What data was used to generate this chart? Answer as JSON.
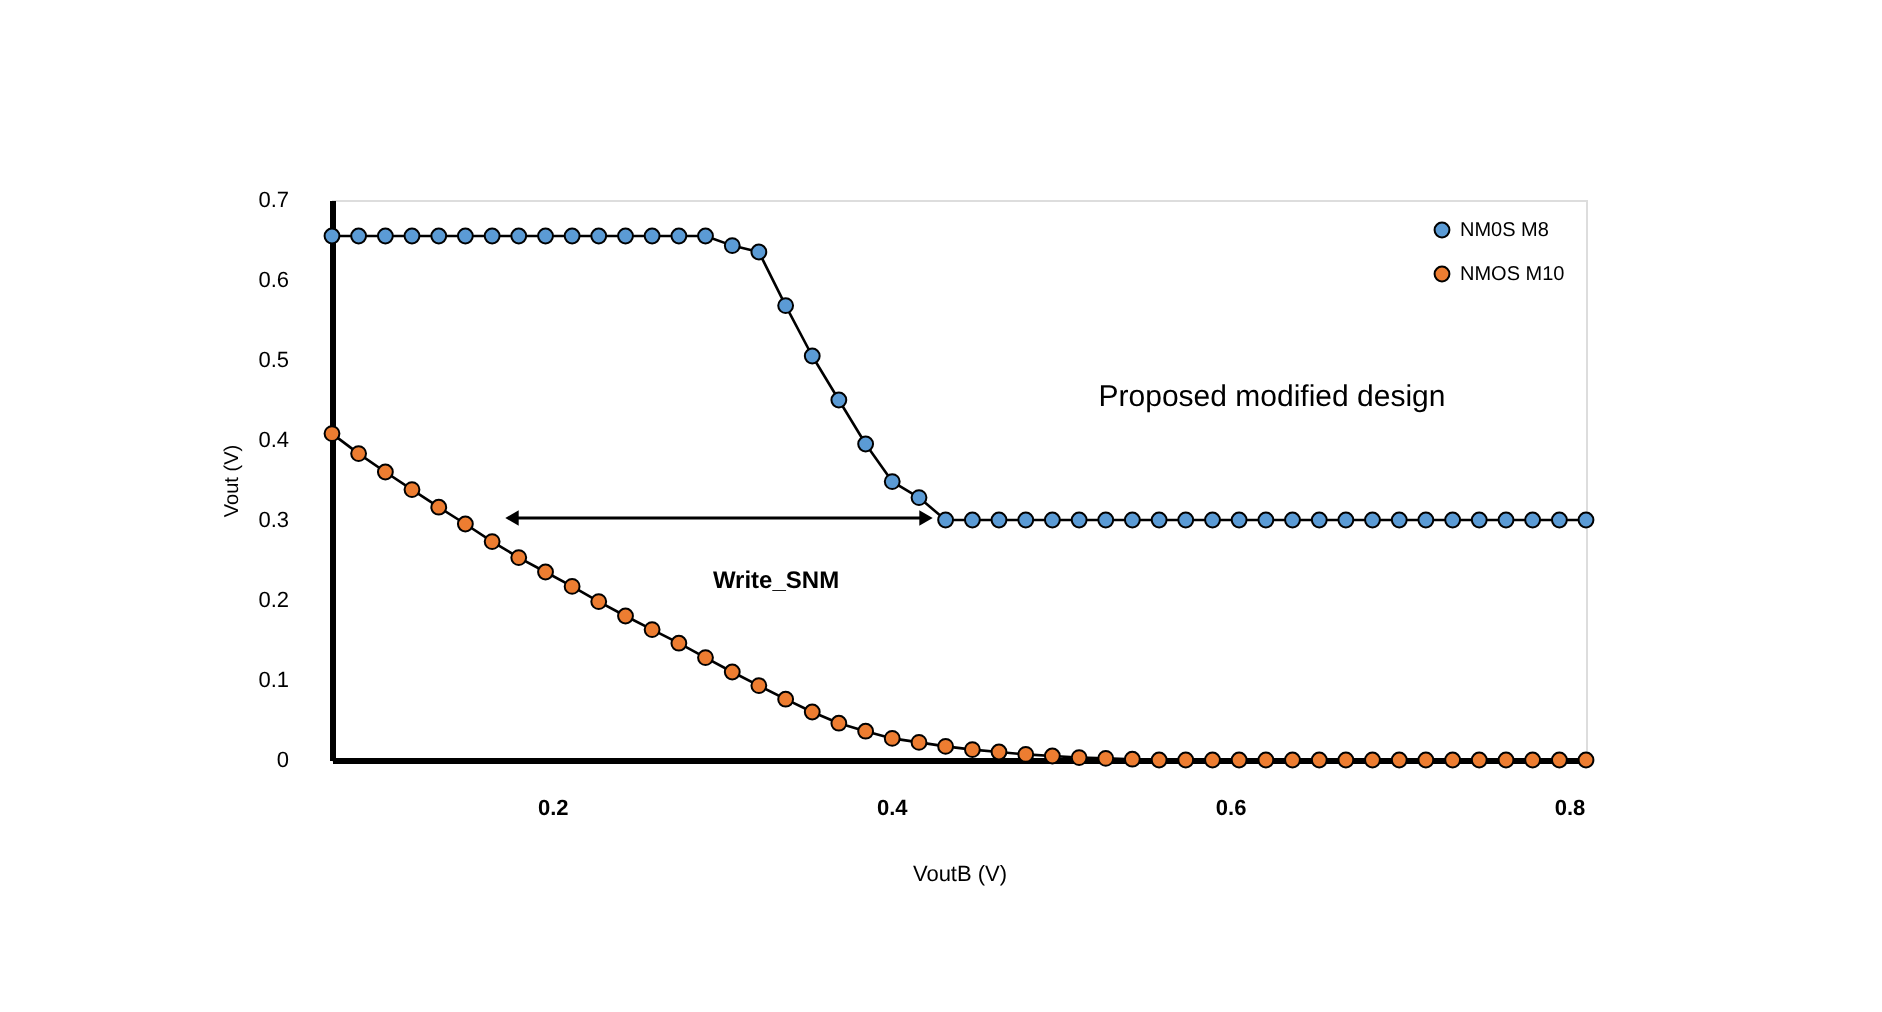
{
  "chart_data": {
    "type": "line",
    "xlabel": "VoutB (V)",
    "ylabel": "Vout (V)",
    "x": [
      0.07,
      0.0857,
      0.1015,
      0.1172,
      0.133,
      0.1487,
      0.1645,
      0.1802,
      0.196,
      0.2117,
      0.2274,
      0.2432,
      0.2589,
      0.2747,
      0.2904,
      0.3062,
      0.3219,
      0.3377,
      0.3534,
      0.3691,
      0.3849,
      0.4006,
      0.4164,
      0.4321,
      0.4479,
      0.4636,
      0.4794,
      0.4951,
      0.5109,
      0.5266,
      0.5423,
      0.5581,
      0.5738,
      0.5896,
      0.6053,
      0.6211,
      0.6368,
      0.6526,
      0.6683,
      0.684,
      0.6998,
      0.7155,
      0.7313,
      0.747,
      0.7628,
      0.7785,
      0.7943,
      0.81
    ],
    "series": [
      {
        "name": "NM0S M8",
        "color": "#5b9bd5",
        "values": [
          0.655,
          0.655,
          0.655,
          0.655,
          0.655,
          0.655,
          0.655,
          0.655,
          0.655,
          0.655,
          0.655,
          0.655,
          0.655,
          0.655,
          0.655,
          0.643,
          0.635,
          0.568,
          0.505,
          0.45,
          0.395,
          0.348,
          0.328,
          0.3,
          0.3,
          0.3,
          0.3,
          0.3,
          0.3,
          0.3,
          0.3,
          0.3,
          0.3,
          0.3,
          0.3,
          0.3,
          0.3,
          0.3,
          0.3,
          0.3,
          0.3,
          0.3,
          0.3,
          0.3,
          0.3,
          0.3,
          0.3,
          0.3
        ]
      },
      {
        "name": "NMOS M10",
        "color": "#ed7d31",
        "values": [
          0.408,
          0.383,
          0.36,
          0.338,
          0.316,
          0.295,
          0.273,
          0.253,
          0.235,
          0.217,
          0.198,
          0.18,
          0.163,
          0.146,
          0.128,
          0.11,
          0.093,
          0.076,
          0.06,
          0.046,
          0.036,
          0.027,
          0.022,
          0.017,
          0.013,
          0.01,
          0.007,
          0.005,
          0.003,
          0.002,
          0.001,
          0,
          0,
          0,
          0,
          0,
          0,
          0,
          0,
          0,
          0,
          0,
          0,
          0,
          0,
          0,
          0,
          0
        ]
      }
    ],
    "xlim": [
      0.07,
      0.81
    ],
    "xticks": [
      0.2,
      0.4,
      0.6,
      0.8
    ],
    "ylim": [
      0,
      0.7
    ],
    "yticks": [
      0,
      0.1,
      0.2,
      0.3,
      0.4,
      0.5,
      0.6,
      0.7
    ],
    "annotations": [
      "Write_SNM",
      "Proposed modified design"
    ],
    "legend": "top right",
    "marker": "circle",
    "line_style": "solid",
    "grid": false
  }
}
